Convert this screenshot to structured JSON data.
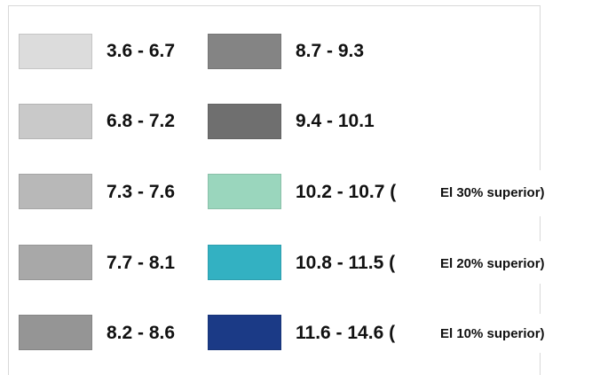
{
  "legend": {
    "items": [
      {
        "label": "3.6 - 6.7",
        "color": "#dcdcdc"
      },
      {
        "label": "6.8 - 7.2",
        "color": "#c9c9c9"
      },
      {
        "label": "7.3 - 7.6",
        "color": "#b8b8b8"
      },
      {
        "label": "7.7 - 8.1",
        "color": "#a8a8a8"
      },
      {
        "label": "8.2 - 8.6",
        "color": "#959595"
      },
      {
        "label": "8.7 - 9.3",
        "color": "#848484"
      },
      {
        "label": "9.4 - 10.1",
        "color": "#6f6f6f"
      },
      {
        "label": "10.2 - 10.7 (",
        "color": "#9ad6bd",
        "note": "El 30% superior)"
      },
      {
        "label": "10.8 - 11.5 (",
        "color": "#33b1c2",
        "note": "El 20% superior)"
      },
      {
        "label": "11.6 - 14.6 (",
        "color": "#1b3a86",
        "note": "El 10% superior)"
      }
    ]
  }
}
